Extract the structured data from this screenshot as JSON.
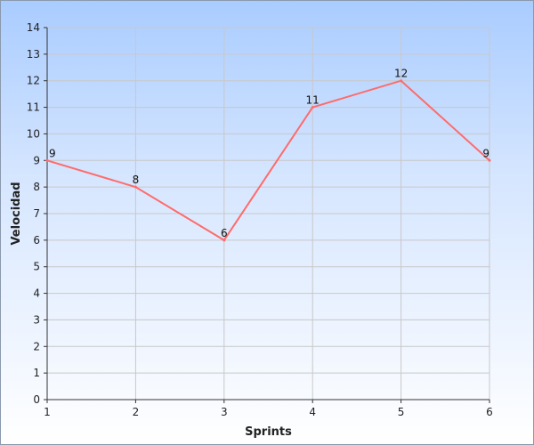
{
  "chart_data": {
    "type": "line",
    "title": "",
    "xlabel": "Sprints",
    "ylabel": "Velocidad",
    "x": [
      1,
      2,
      3,
      4,
      5,
      6
    ],
    "series": [
      {
        "values": [
          9,
          8,
          6,
          11,
          12,
          9
        ],
        "color": "#ff6b6b"
      }
    ],
    "xlim": [
      1,
      6
    ],
    "ylim": [
      0,
      14
    ],
    "yticks": [
      0,
      1,
      2,
      3,
      4,
      5,
      6,
      7,
      8,
      9,
      10,
      11,
      12,
      13,
      14
    ],
    "xticks": [
      1,
      2,
      3,
      4,
      5,
      6
    ],
    "grid": true,
    "data_labels": true,
    "legend": "none"
  }
}
